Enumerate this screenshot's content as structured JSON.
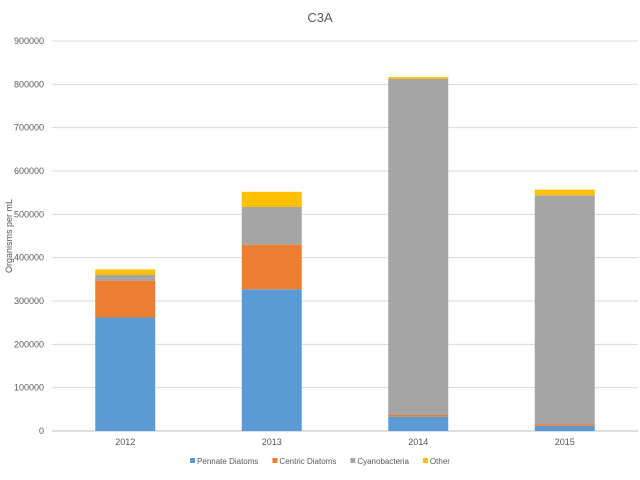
{
  "chart_data": {
    "type": "bar",
    "stacked": true,
    "title": "C3A",
    "xlabel": "",
    "ylabel": "Organisms per mL",
    "categories": [
      "2012",
      "2013",
      "2014",
      "2015"
    ],
    "ylim": [
      0,
      900000
    ],
    "yticks": [
      0,
      100000,
      200000,
      300000,
      400000,
      500000,
      600000,
      700000,
      800000,
      900000
    ],
    "ytick_labels": [
      "0",
      "100000",
      "200000",
      "300000",
      "400000",
      "500000",
      "600000",
      "700000",
      "800000",
      "900000"
    ],
    "grid": true,
    "legend_position": "bottom",
    "series": [
      {
        "name": "Pennate Diatoms",
        "color": "#5B9BD5",
        "values": [
          262000,
          327000,
          33000,
          12000
        ]
      },
      {
        "name": "Centric Diatoms",
        "color": "#ED7D31",
        "values": [
          85000,
          103000,
          4000,
          4000
        ]
      },
      {
        "name": "Cyanobacteria",
        "color": "#A5A5A5",
        "values": [
          13000,
          87000,
          776000,
          528000
        ]
      },
      {
        "name": "Other",
        "color": "#FFC000",
        "values": [
          13000,
          35000,
          4000,
          13000
        ]
      }
    ]
  }
}
